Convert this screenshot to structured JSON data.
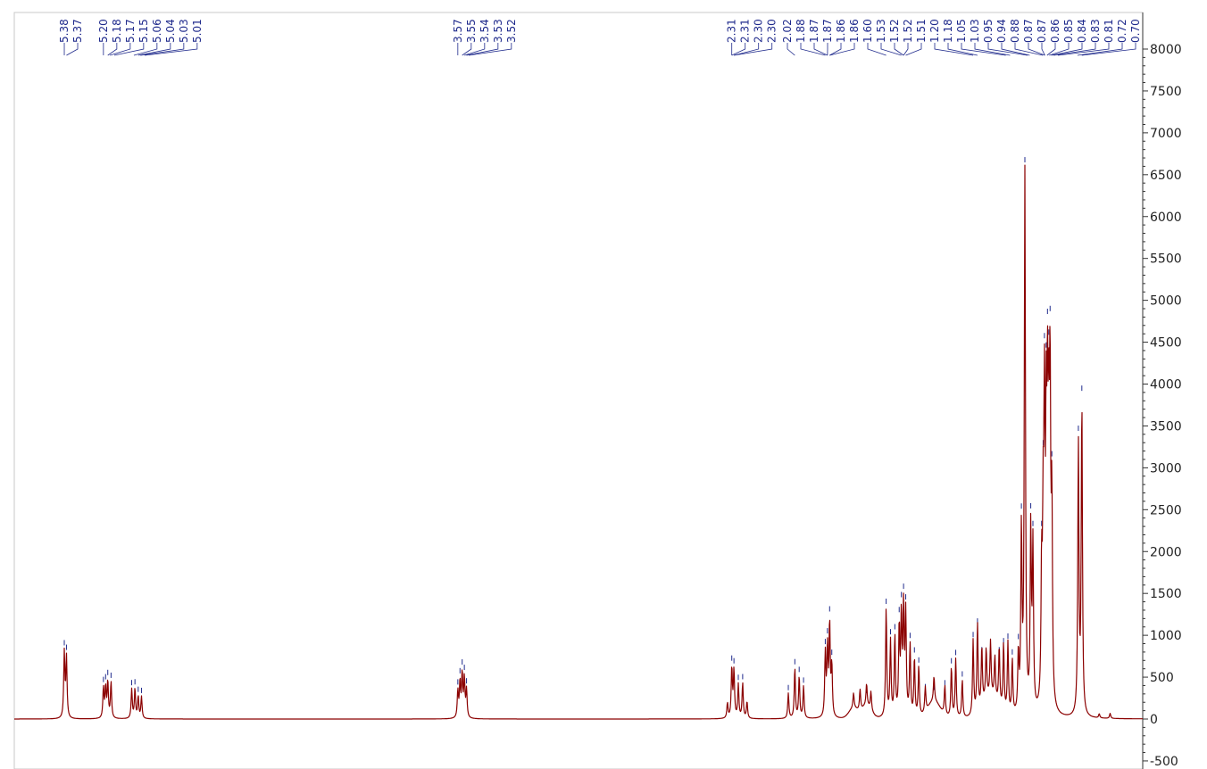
{
  "chart_data": {
    "type": "line",
    "title": "",
    "xlabel": "",
    "ylabel": "",
    "x_reversed": true,
    "xlim": [
      5.61,
      0.42
    ],
    "ylim": [
      -500,
      8000
    ],
    "y_ticks": [
      8000,
      7500,
      7000,
      6500,
      6000,
      5500,
      5000,
      4500,
      4000,
      3500,
      3000,
      2500,
      2000,
      1500,
      1000,
      500,
      0,
      -500
    ],
    "grid": false,
    "colors": {
      "spectrum": "#8b0000",
      "peak_marker": "#1f2a8c",
      "axis": "#333333"
    },
    "peak_labels": [
      "5.38",
      "5.37",
      "5.20",
      "5.18",
      "5.17",
      "5.15",
      "5.06",
      "5.04",
      "5.03",
      "5.01",
      "3.57",
      "3.55",
      "3.54",
      "3.53",
      "3.52",
      "2.31",
      "2.31",
      "2.30",
      "2.30",
      "2.02",
      "1.88",
      "1.87",
      "1.87",
      "1.86",
      "1.86",
      "1.60",
      "1.53",
      "1.52",
      "1.52",
      "1.51",
      "1.20",
      "1.18",
      "1.05",
      "1.03",
      "0.95",
      "0.94",
      "0.88",
      "0.87",
      "0.87",
      "0.86",
      "0.85",
      "0.84",
      "0.83",
      "0.81",
      "0.72",
      "0.70"
    ],
    "peak_positions": [
      5.38,
      5.37,
      5.2,
      5.18,
      5.17,
      5.15,
      5.06,
      5.04,
      5.03,
      5.01,
      3.57,
      3.55,
      3.54,
      3.53,
      3.52,
      2.31,
      2.31,
      2.3,
      2.3,
      2.02,
      1.88,
      1.87,
      1.87,
      1.86,
      1.86,
      1.6,
      1.53,
      1.52,
      1.52,
      1.51,
      1.2,
      1.18,
      1.05,
      1.03,
      0.95,
      0.94,
      0.88,
      0.87,
      0.87,
      0.86,
      0.85,
      0.84,
      0.83,
      0.81,
      0.72,
      0.7
    ],
    "peaks": [
      {
        "x": 5.38,
        "y": 780
      },
      {
        "x": 5.37,
        "y": 720
      },
      {
        "x": 5.2,
        "y": 360
      },
      {
        "x": 5.19,
        "y": 360
      },
      {
        "x": 5.18,
        "y": 430
      },
      {
        "x": 5.165,
        "y": 430
      },
      {
        "x": 5.07,
        "y": 350
      },
      {
        "x": 5.055,
        "y": 350
      },
      {
        "x": 5.04,
        "y": 260
      },
      {
        "x": 5.025,
        "y": 260
      },
      {
        "x": 3.57,
        "y": 320
      },
      {
        "x": 3.56,
        "y": 420
      },
      {
        "x": 3.55,
        "y": 520
      },
      {
        "x": 3.54,
        "y": 460
      },
      {
        "x": 3.53,
        "y": 330
      },
      {
        "x": 2.33,
        "y": 180
      },
      {
        "x": 2.31,
        "y": 600
      },
      {
        "x": 2.3,
        "y": 560
      },
      {
        "x": 2.28,
        "y": 400
      },
      {
        "x": 2.26,
        "y": 420
      },
      {
        "x": 2.24,
        "y": 200
      },
      {
        "x": 2.05,
        "y": 300
      },
      {
        "x": 2.02,
        "y": 600
      },
      {
        "x": 2.0,
        "y": 500
      },
      {
        "x": 1.98,
        "y": 380
      },
      {
        "x": 1.88,
        "y": 750
      },
      {
        "x": 1.87,
        "y": 800
      },
      {
        "x": 1.86,
        "y": 1100
      },
      {
        "x": 1.85,
        "y": 600
      },
      {
        "x": 1.75,
        "y": 180
      },
      {
        "x": 1.72,
        "y": 250
      },
      {
        "x": 1.69,
        "y": 260
      },
      {
        "x": 1.67,
        "y": 220
      },
      {
        "x": 1.6,
        "y": 1300
      },
      {
        "x": 1.58,
        "y": 900
      },
      {
        "x": 1.56,
        "y": 950
      },
      {
        "x": 1.54,
        "y": 1050
      },
      {
        "x": 1.53,
        "y": 1150
      },
      {
        "x": 1.52,
        "y": 1250
      },
      {
        "x": 1.51,
        "y": 1200
      },
      {
        "x": 1.49,
        "y": 850
      },
      {
        "x": 1.47,
        "y": 700
      },
      {
        "x": 1.45,
        "y": 600
      },
      {
        "x": 1.42,
        "y": 300
      },
      {
        "x": 1.38,
        "y": 300
      },
      {
        "x": 1.33,
        "y": 350
      },
      {
        "x": 1.3,
        "y": 600
      },
      {
        "x": 1.28,
        "y": 700
      },
      {
        "x": 1.25,
        "y": 450
      },
      {
        "x": 1.2,
        "y": 900
      },
      {
        "x": 1.18,
        "y": 1050
      },
      {
        "x": 1.16,
        "y": 700
      },
      {
        "x": 1.14,
        "y": 600
      },
      {
        "x": 1.12,
        "y": 650
      },
      {
        "x": 1.1,
        "y": 500
      },
      {
        "x": 1.08,
        "y": 700
      },
      {
        "x": 1.06,
        "y": 800
      },
      {
        "x": 1.04,
        "y": 850
      },
      {
        "x": 1.02,
        "y": 650
      },
      {
        "x": 0.992,
        "y": 700
      },
      {
        "x": 0.978,
        "y": 2150
      },
      {
        "x": 0.962,
        "y": 6450
      },
      {
        "x": 0.935,
        "y": 2150
      },
      {
        "x": 0.925,
        "y": 1950
      },
      {
        "x": 0.885,
        "y": 1550
      },
      {
        "x": 0.878,
        "y": 1900
      },
      {
        "x": 0.872,
        "y": 3300
      },
      {
        "x": 0.864,
        "y": 2800
      },
      {
        "x": 0.858,
        "y": 3050
      },
      {
        "x": 0.852,
        "y": 2650
      },
      {
        "x": 0.846,
        "y": 3550
      },
      {
        "x": 0.838,
        "y": 2300
      },
      {
        "x": 0.716,
        "y": 3250
      },
      {
        "x": 0.7,
        "y": 3750
      },
      {
        "x": 0.62,
        "y": 50
      },
      {
        "x": 0.57,
        "y": 60
      }
    ]
  }
}
